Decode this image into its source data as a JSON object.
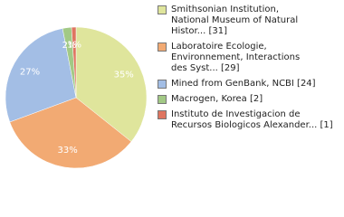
{
  "chart_data": {
    "type": "pie",
    "categories": [
      "Smithsonian Institution,\nNational Museum of Natural\nHistor... [31]",
      "Laboratoire Ecologie,\nEnvironnement, Interactions\ndes Syst... [29]",
      "Mined from GenBank, NCBI [24]",
      "Macrogen, Korea [2]",
      "Instituto de Investigacion de\nRecursos Biologicos Alexander... [1]"
    ],
    "values": [
      35,
      33,
      27,
      2,
      1
    ],
    "value_labels": [
      "35%",
      "33%",
      "27%",
      "2%",
      "1%"
    ],
    "colors": [
      "#dfe59c",
      "#f2aa73",
      "#a3bee5",
      "#a2c985",
      "#df7560"
    ]
  }
}
